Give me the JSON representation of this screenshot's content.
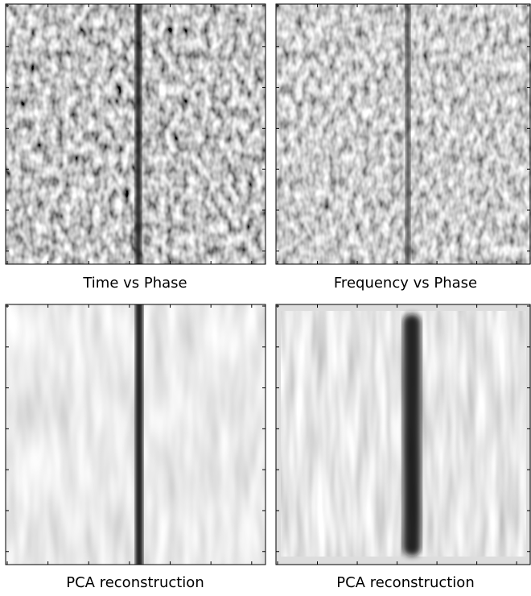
{
  "panels": [
    {
      "caption": "Time vs Phase"
    },
    {
      "caption": "Frequency vs Phase"
    },
    {
      "caption": "PCA reconstruction"
    },
    {
      "caption": "PCA reconstruction"
    }
  ]
}
